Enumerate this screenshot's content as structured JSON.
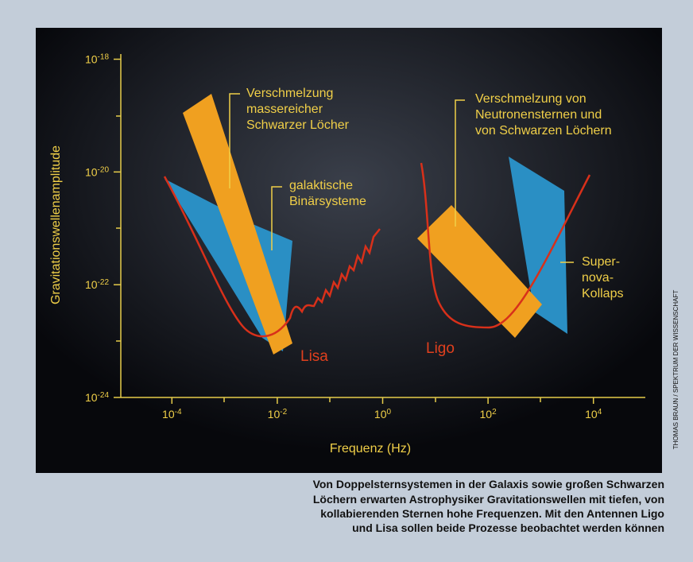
{
  "chart_data": {
    "type": "region",
    "x_label": "Frequenz (Hz)",
    "y_label": "Gravitationswellenamplitude",
    "log_x": true,
    "log_y": true,
    "xlim": [
      1e-05,
      100000.0
    ],
    "ylim": [
      1e-24,
      1e-18
    ],
    "xticks": [
      {
        "value": 0.0001,
        "label": "10",
        "exponent": "-4"
      },
      {
        "value": 0.01,
        "label": "10",
        "exponent": "-2"
      },
      {
        "value": 1,
        "label": "10",
        "exponent": "0"
      },
      {
        "value": 100,
        "label": "10",
        "exponent": "2"
      },
      {
        "value": 10000,
        "label": "10",
        "exponent": "4"
      }
    ],
    "yticks": [
      {
        "value": 1e-18,
        "label": "10",
        "exponent": "-18"
      },
      {
        "value": 1e-20,
        "label": "10",
        "exponent": "-20"
      },
      {
        "value": 1e-22,
        "label": "10",
        "exponent": "-22"
      },
      {
        "value": 1e-24,
        "label": "10",
        "exponent": "-24"
      }
    ],
    "annotations": {
      "massive": [
        "Verschmelzung",
        "massereicher",
        "Schwarzer Löcher"
      ],
      "binary": [
        "galaktische",
        "Binärsysteme"
      ],
      "neutron": [
        "Verschmelzung von",
        "Neutronensternen und",
        "von Schwarzen Löchern"
      ],
      "supernova": [
        "Super-",
        "nova-",
        "Kollaps"
      ],
      "lisa": "Lisa",
      "ligo": "Ligo"
    },
    "credit": "THOMAS BRAUN / SPEKTRUM DER WISSENSCHAFT",
    "caption": [
      "Von Doppelsternsystemen in der Galaxis sowie großen Schwarzen",
      "Löchern erwarten Astrophysiker Gravitationswellen mit tiefen, von",
      "kollabierenden Sternen hohe Frequenzen. Mit den Antennen Ligo",
      "und Lisa sollen beide Prozesse beobachtet werden können"
    ]
  }
}
